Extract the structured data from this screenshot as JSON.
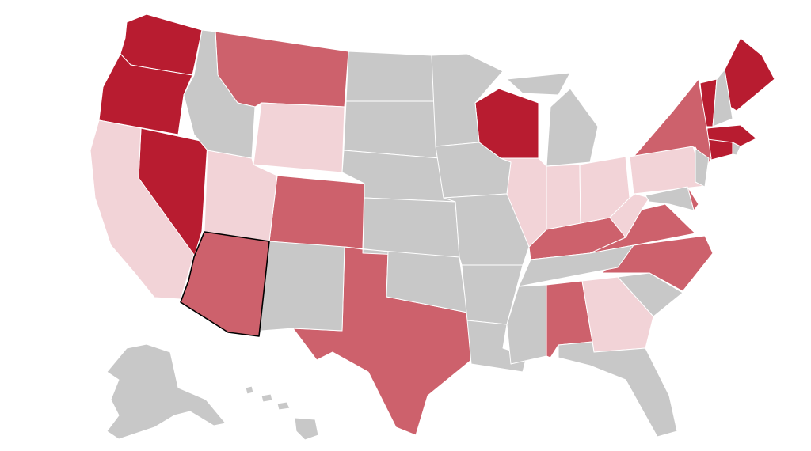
{
  "map": {
    "type": "choropleth",
    "region": "United States",
    "colors": {
      "dark": "#b81c30",
      "medium": "#cd616c",
      "light": "#f2d3d7",
      "none": "#c8c8c8"
    },
    "highlighted_state": "AZ",
    "states": [
      {
        "id": "WA",
        "level": "dark"
      },
      {
        "id": "OR",
        "level": "dark"
      },
      {
        "id": "NV",
        "level": "dark"
      },
      {
        "id": "WI",
        "level": "dark"
      },
      {
        "id": "VT",
        "level": "dark"
      },
      {
        "id": "ME",
        "level": "dark"
      },
      {
        "id": "MA",
        "level": "dark"
      },
      {
        "id": "CT",
        "level": "dark"
      },
      {
        "id": "MT",
        "level": "medium"
      },
      {
        "id": "CO",
        "level": "medium"
      },
      {
        "id": "AZ",
        "level": "medium"
      },
      {
        "id": "TX",
        "level": "medium"
      },
      {
        "id": "AL",
        "level": "medium"
      },
      {
        "id": "KY",
        "level": "medium"
      },
      {
        "id": "VA",
        "level": "medium"
      },
      {
        "id": "NC",
        "level": "medium"
      },
      {
        "id": "NY",
        "level": "medium"
      },
      {
        "id": "DE",
        "level": "medium"
      },
      {
        "id": "CA",
        "level": "light"
      },
      {
        "id": "UT",
        "level": "light"
      },
      {
        "id": "WY",
        "level": "light"
      },
      {
        "id": "IL",
        "level": "light"
      },
      {
        "id": "IN",
        "level": "light"
      },
      {
        "id": "OH",
        "level": "light"
      },
      {
        "id": "PA",
        "level": "light"
      },
      {
        "id": "WV",
        "level": "light"
      },
      {
        "id": "GA",
        "level": "light"
      },
      {
        "id": "ID",
        "level": "none"
      },
      {
        "id": "NM",
        "level": "none"
      },
      {
        "id": "ND",
        "level": "none"
      },
      {
        "id": "SD",
        "level": "none"
      },
      {
        "id": "NE",
        "level": "none"
      },
      {
        "id": "KS",
        "level": "none"
      },
      {
        "id": "OK",
        "level": "none"
      },
      {
        "id": "MN",
        "level": "none"
      },
      {
        "id": "IA",
        "level": "none"
      },
      {
        "id": "MO",
        "level": "none"
      },
      {
        "id": "AR",
        "level": "none"
      },
      {
        "id": "LA",
        "level": "none"
      },
      {
        "id": "MI",
        "level": "none"
      },
      {
        "id": "TN",
        "level": "none"
      },
      {
        "id": "MS",
        "level": "none"
      },
      {
        "id": "FL",
        "level": "none"
      },
      {
        "id": "SC",
        "level": "none"
      },
      {
        "id": "NH",
        "level": "none"
      },
      {
        "id": "RI",
        "level": "none"
      },
      {
        "id": "NJ",
        "level": "none"
      },
      {
        "id": "MD",
        "level": "none"
      },
      {
        "id": "AK",
        "level": "none"
      },
      {
        "id": "HI",
        "level": "none"
      }
    ]
  }
}
